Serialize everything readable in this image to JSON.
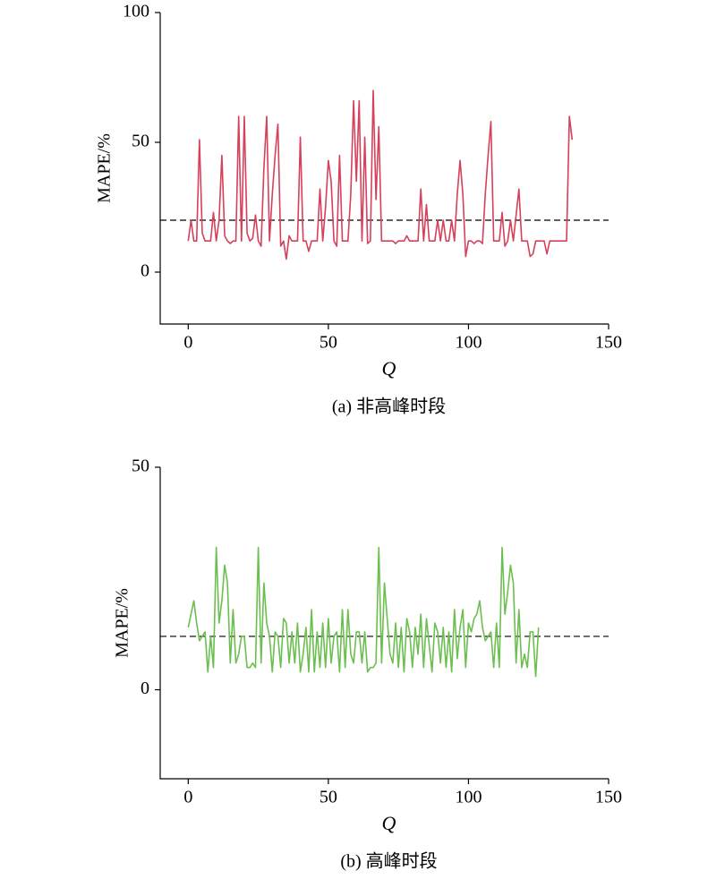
{
  "chart_data": [
    {
      "type": "line",
      "color": "#d6405a",
      "xlabel": "Q",
      "ylabel": "MAPE/%",
      "caption": "(a) 非高峰时段",
      "xlim": [
        -10,
        150
      ],
      "xticks": [
        0,
        50,
        100,
        150
      ],
      "ylim": [
        -20,
        100
      ],
      "yticks": [
        0,
        50,
        100
      ],
      "reference_line": 20,
      "x": [
        0,
        1,
        2,
        3,
        4,
        5,
        6,
        7,
        8,
        9,
        10,
        11,
        12,
        13,
        14,
        15,
        16,
        17,
        18,
        19,
        20,
        21,
        22,
        23,
        24,
        25,
        26,
        27,
        28,
        29,
        30,
        31,
        32,
        33,
        34,
        35,
        36,
        37,
        38,
        39,
        40,
        41,
        42,
        43,
        44,
        45,
        46,
        47,
        48,
        49,
        50,
        51,
        52,
        53,
        54,
        55,
        56,
        57,
        58,
        59,
        60,
        61,
        62,
        63,
        64,
        65,
        66,
        67,
        68,
        69,
        70,
        71,
        72,
        73,
        74,
        75,
        76,
        77,
        78,
        79,
        80,
        81,
        82,
        83,
        84,
        85,
        86,
        87,
        88,
        89,
        90,
        91,
        92,
        93,
        94,
        95,
        96,
        97,
        98,
        99,
        100,
        101,
        102,
        103,
        104,
        105,
        106,
        107,
        108,
        109,
        110,
        111,
        112,
        113,
        114,
        115,
        116,
        117,
        118,
        119,
        120,
        121,
        122,
        123,
        124,
        125,
        126,
        127,
        128,
        129,
        130,
        131,
        132,
        133,
        134,
        135,
        136,
        137
      ],
      "values": [
        12,
        20,
        12,
        12,
        51,
        15,
        12,
        12,
        12,
        23,
        12,
        20,
        45,
        14,
        12,
        11,
        12,
        12,
        60,
        12,
        60,
        15,
        12,
        13,
        22,
        12,
        10,
        40,
        60,
        12,
        30,
        45,
        57,
        10,
        12,
        5,
        14,
        12,
        12,
        12,
        52,
        12,
        12,
        8,
        12,
        12,
        12,
        32,
        12,
        25,
        43,
        35,
        12,
        10,
        45,
        12,
        12,
        12,
        30,
        66,
        35,
        66,
        12,
        52,
        11,
        12,
        70,
        28,
        56,
        12,
        12,
        12,
        12,
        12,
        11,
        12,
        12,
        12,
        14,
        12,
        12,
        12,
        12,
        32,
        12,
        26,
        12,
        12,
        12,
        20,
        12,
        20,
        12,
        12,
        20,
        12,
        30,
        43,
        30,
        6,
        12,
        12,
        11,
        12,
        12,
        11,
        30,
        45,
        58,
        12,
        12,
        12,
        23,
        10,
        12,
        20,
        12,
        22,
        32,
        12,
        12,
        12,
        6,
        7,
        12,
        12,
        12,
        12,
        7,
        12,
        12,
        12,
        12,
        12,
        12,
        12,
        60,
        51
      ]
    },
    {
      "type": "line",
      "color": "#6bbf4e",
      "xlabel": "Q",
      "ylabel": "MAPE/%",
      "caption": "(b) 高峰时段",
      "xlim": [
        -10,
        150
      ],
      "xticks": [
        0,
        50,
        100,
        150
      ],
      "ylim": [
        -20,
        50
      ],
      "yticks": [
        0,
        50
      ],
      "reference_line": 12,
      "x": [
        0,
        1,
        2,
        3,
        4,
        5,
        6,
        7,
        8,
        9,
        10,
        11,
        12,
        13,
        14,
        15,
        16,
        17,
        18,
        19,
        20,
        21,
        22,
        23,
        24,
        25,
        26,
        27,
        28,
        29,
        30,
        31,
        32,
        33,
        34,
        35,
        36,
        37,
        38,
        39,
        40,
        41,
        42,
        43,
        44,
        45,
        46,
        47,
        48,
        49,
        50,
        51,
        52,
        53,
        54,
        55,
        56,
        57,
        58,
        59,
        60,
        61,
        62,
        63,
        64,
        65,
        66,
        67,
        68,
        69,
        70,
        71,
        72,
        73,
        74,
        75,
        76,
        77,
        78,
        79,
        80,
        81,
        82,
        83,
        84,
        85,
        86,
        87,
        88,
        89,
        90,
        91,
        92,
        93,
        94,
        95,
        96,
        97,
        98,
        99,
        100,
        101,
        102,
        103,
        104,
        105,
        106,
        107,
        108,
        109,
        110,
        111,
        112,
        113,
        114,
        115,
        116,
        117,
        118,
        119,
        120,
        121,
        122,
        123,
        124,
        125
      ],
      "values": [
        14,
        17,
        20,
        15,
        11,
        12,
        13,
        4,
        12,
        5,
        32,
        15,
        20,
        28,
        24,
        6,
        18,
        6,
        8,
        12,
        12,
        5,
        5,
        6,
        5,
        32,
        6,
        24,
        15,
        12,
        4,
        13,
        12,
        5,
        16,
        15,
        6,
        13,
        6,
        15,
        4,
        8,
        14,
        4,
        18,
        4,
        13,
        5,
        15,
        5,
        16,
        6,
        12,
        13,
        4,
        18,
        5,
        18,
        8,
        6,
        13,
        13,
        6,
        13,
        4,
        5,
        5,
        6,
        32,
        6,
        24,
        16,
        8,
        6,
        15,
        5,
        14,
        4,
        16,
        13,
        5,
        14,
        8,
        17,
        5,
        16,
        10,
        4,
        15,
        13,
        6,
        14,
        5,
        13,
        4,
        18,
        7,
        14,
        18,
        5,
        15,
        13,
        16,
        17,
        20,
        14,
        11,
        12,
        13,
        5,
        15,
        5,
        32,
        17,
        22,
        28,
        24,
        6,
        18,
        5,
        8,
        5,
        13,
        13,
        3,
        14
      ]
    }
  ]
}
